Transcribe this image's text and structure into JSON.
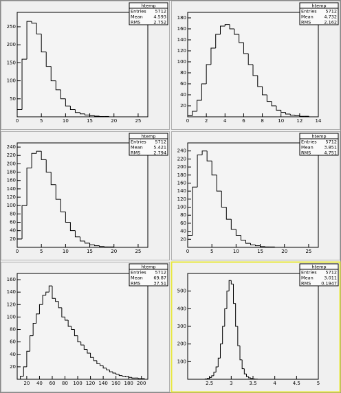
{
  "chart_data": [
    {
      "type": "histogram",
      "color": "#000000",
      "bins": [
        0,
        1,
        2,
        3,
        4,
        5,
        6,
        7,
        8,
        9,
        10,
        11,
        12,
        13,
        14,
        15,
        16,
        17,
        18,
        19,
        20,
        21,
        22,
        23,
        24,
        25,
        26,
        27
      ],
      "counts": [
        20,
        160,
        265,
        260,
        230,
        180,
        140,
        100,
        75,
        50,
        30,
        20,
        12,
        8,
        5,
        3,
        2,
        1,
        1,
        0,
        0,
        0,
        0,
        0,
        0,
        0,
        0
      ],
      "xlim": [
        0,
        27
      ],
      "ylim": [
        0,
        290
      ],
      "xticks": [
        0,
        5,
        10,
        15,
        20,
        25
      ],
      "yticks": [
        50,
        100,
        150,
        200,
        250
      ],
      "stats": {
        "title": "htemp",
        "entries_label": "Entries",
        "entries": 5712,
        "mean_label": "Mean",
        "mean": 4.593,
        "rms_label": "RMS",
        "rms": 2.752
      }
    },
    {
      "type": "histogram",
      "color": "#000000",
      "bins": [
        0,
        0.5,
        1,
        1.5,
        2,
        2.5,
        3,
        3.5,
        4,
        4.5,
        5,
        5.5,
        6,
        6.5,
        7,
        7.5,
        8,
        8.5,
        9,
        9.5,
        10,
        10.5,
        11,
        11.5,
        12,
        12.5,
        13,
        13.5,
        14
      ],
      "counts": [
        2,
        10,
        30,
        60,
        95,
        125,
        150,
        165,
        168,
        160,
        150,
        135,
        115,
        95,
        75,
        55,
        40,
        28,
        20,
        12,
        8,
        5,
        3,
        2,
        1,
        1,
        0,
        0
      ],
      "xlim": [
        0,
        14
      ],
      "ylim": [
        0,
        190
      ],
      "xticks": [
        0,
        2,
        4,
        6,
        8,
        10,
        12,
        14
      ],
      "yticks": [
        20,
        40,
        60,
        80,
        100,
        120,
        140,
        160,
        180
      ],
      "stats": {
        "title": "htemp",
        "entries_label": "Entries",
        "entries": 5712,
        "mean_label": "Mean",
        "mean": 4.732,
        "rms_label": "RMS",
        "rms": 2.162
      }
    },
    {
      "type": "histogram",
      "color": "#000000",
      "bins": [
        0,
        1,
        2,
        3,
        4,
        5,
        6,
        7,
        8,
        9,
        10,
        11,
        12,
        13,
        14,
        15,
        16,
        17,
        18,
        19,
        20,
        21,
        22,
        23,
        24,
        25,
        26,
        27
      ],
      "counts": [
        20,
        100,
        190,
        225,
        230,
        210,
        180,
        150,
        115,
        85,
        60,
        40,
        25,
        15,
        10,
        6,
        4,
        2,
        1,
        1,
        0,
        0,
        0,
        0,
        0,
        0,
        0
      ],
      "xlim": [
        0,
        27
      ],
      "ylim": [
        0,
        250
      ],
      "xticks": [
        0,
        5,
        10,
        15,
        20,
        25
      ],
      "yticks": [
        20,
        40,
        60,
        80,
        100,
        120,
        140,
        160,
        180,
        200,
        220,
        240
      ],
      "stats": {
        "title": "htemp",
        "entries_label": "Entries",
        "entries": 5712,
        "mean_label": "Mean",
        "mean": 5.421,
        "rms_label": "RMS",
        "rms": 2.794
      }
    },
    {
      "type": "histogram",
      "color": "#000000",
      "bins": [
        0,
        1,
        2,
        3,
        4,
        5,
        6,
        7,
        8,
        9,
        10,
        11,
        12,
        13,
        14,
        15,
        16,
        17,
        18,
        19,
        20,
        21,
        22,
        23,
        24,
        25,
        26,
        27
      ],
      "counts": [
        30,
        150,
        230,
        240,
        215,
        180,
        140,
        100,
        70,
        45,
        30,
        18,
        10,
        6,
        4,
        2,
        1,
        1,
        0,
        0,
        0,
        0,
        0,
        0,
        0,
        0,
        0
      ],
      "xlim": [
        0,
        27
      ],
      "ylim": [
        0,
        260
      ],
      "xticks": [
        0,
        5,
        10,
        15,
        20,
        25
      ],
      "yticks": [
        20,
        40,
        60,
        80,
        100,
        120,
        140,
        160,
        180,
        200,
        220,
        240
      ],
      "stats": {
        "title": "htemp",
        "entries_label": "Entries",
        "entries": 5712,
        "mean_label": "Mean",
        "mean": 3.851,
        "rms_label": "RMS",
        "rms": 4.751
      }
    },
    {
      "type": "histogram",
      "color": "#000000",
      "bins": [
        10,
        15,
        20,
        25,
        30,
        35,
        40,
        45,
        50,
        55,
        60,
        65,
        70,
        75,
        80,
        85,
        90,
        95,
        100,
        105,
        110,
        115,
        120,
        125,
        130,
        135,
        140,
        145,
        150,
        155,
        160,
        165,
        170,
        175,
        180,
        185,
        190,
        195,
        200,
        205,
        210
      ],
      "counts": [
        5,
        20,
        45,
        70,
        90,
        105,
        120,
        135,
        140,
        150,
        130,
        125,
        115,
        100,
        95,
        85,
        80,
        70,
        60,
        55,
        48,
        42,
        35,
        30,
        25,
        22,
        18,
        15,
        12,
        10,
        8,
        6,
        5,
        4,
        3,
        2,
        2,
        1,
        1,
        0
      ],
      "xlim": [
        5,
        210
      ],
      "ylim": [
        0,
        170
      ],
      "xticks": [
        20,
        40,
        60,
        80,
        100,
        120,
        140,
        160,
        180,
        200
      ],
      "yticks": [
        20,
        40,
        60,
        80,
        100,
        120,
        140,
        160
      ],
      "stats": {
        "title": "htemp",
        "entries_label": "Entries",
        "entries": 5712,
        "mean_label": "Mean",
        "mean": 69.87,
        "rms_label": "RMS",
        "rms": 37.51
      }
    },
    {
      "type": "histogram",
      "color": "#000000",
      "bins": [
        2.4,
        2.45,
        2.5,
        2.55,
        2.6,
        2.65,
        2.7,
        2.75,
        2.8,
        2.85,
        2.9,
        2.95,
        3.0,
        3.05,
        3.1,
        3.15,
        3.2,
        3.25,
        3.3,
        3.35,
        3.4,
        3.45,
        3.5,
        3.55,
        3.6
      ],
      "counts": [
        2,
        5,
        10,
        20,
        40,
        70,
        120,
        200,
        300,
        400,
        500,
        560,
        540,
        430,
        300,
        190,
        110,
        60,
        30,
        15,
        8,
        4,
        2,
        1
      ],
      "xlim": [
        2,
        5
      ],
      "ylim": [
        0,
        600
      ],
      "xticks": [
        2.5,
        3,
        3.5,
        4,
        4.5,
        5
      ],
      "yticks": [
        100,
        200,
        300,
        400,
        500
      ],
      "stats": {
        "title": "htemp",
        "entries_label": "Entries",
        "entries": 5712,
        "mean_label": "Mean",
        "mean": 3.011,
        "rms_label": "RMS",
        "rms": 0.1947
      }
    }
  ]
}
